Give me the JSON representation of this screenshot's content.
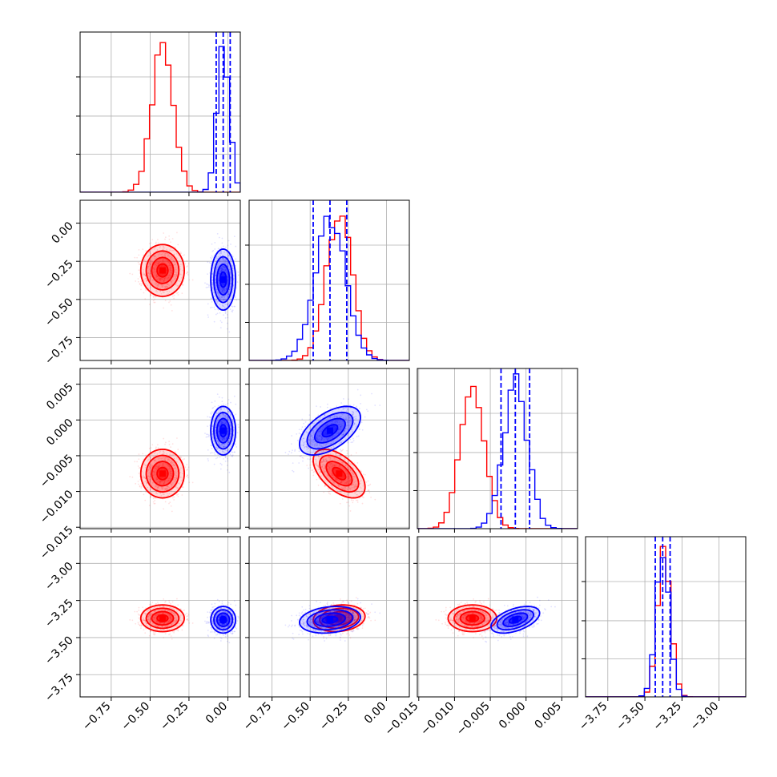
{
  "chart_data": {
    "type": "corner",
    "parameters": [
      {
        "range": [
          -0.95,
          0.08
        ],
        "ticks": [
          -0.75,
          -0.5,
          -0.25,
          0.0
        ],
        "tick_labels": [
          "−0.75",
          "−0.50",
          "−0.25",
          "0.00"
        ]
      },
      {
        "range": [
          -0.9,
          0.15
        ],
        "ticks": [
          -0.75,
          -0.5,
          -0.25,
          0.0
        ],
        "tick_labels": [
          "−0.75",
          "−0.50",
          "−0.25",
          "0.00"
        ]
      },
      {
        "range": [
          -0.0152,
          0.0072
        ],
        "ticks": [
          -0.015,
          -0.01,
          -0.005,
          0.0,
          0.005
        ],
        "tick_labels": [
          "−0.015",
          "−0.010",
          "−0.005",
          "0.000",
          "0.005"
        ]
      },
      {
        "range": [
          -3.9,
          -2.82
        ],
        "ticks": [
          -3.75,
          -3.5,
          -3.25,
          -3.0
        ],
        "tick_labels": [
          "−3.75",
          "−3.50",
          "−3.25",
          "−3.00"
        ]
      }
    ],
    "series": [
      {
        "color": "#ff0000",
        "mean": [
          -0.42,
          -0.31,
          -0.0075,
          -3.37
        ],
        "std": [
          0.07,
          0.085,
          0.0017,
          0.045
        ],
        "corr": {
          "0-1": 0.0,
          "0-2": 0.0,
          "0-3": 0.0,
          "1-2": -0.55,
          "1-3": 0.15,
          "2-3": 0.0
        },
        "quantile_lines": []
      },
      {
        "color": "#0000ff",
        "mean": [
          -0.03,
          -0.37,
          -0.0015,
          -3.38
        ],
        "std": [
          0.04,
          0.1,
          0.0017,
          0.045
        ],
        "corr": {
          "0-1": 0.0,
          "0-2": 0.0,
          "0-3": 0.0,
          "1-2": 0.55,
          "1-3": 0.2,
          "2-3": 0.5
        },
        "quantile_lines": [
          [
            -0.075,
            -0.03,
            0.015
          ],
          [
            -0.48,
            -0.37,
            -0.26
          ],
          [
            -0.0035,
            -0.0015,
            0.0005
          ],
          [
            -3.43,
            -3.38,
            -3.33
          ]
        ]
      }
    ],
    "histogram_bins": 30,
    "contour_levels_sigma": [
      0.5,
      1.0,
      1.5,
      2.0
    ],
    "grid": true
  }
}
